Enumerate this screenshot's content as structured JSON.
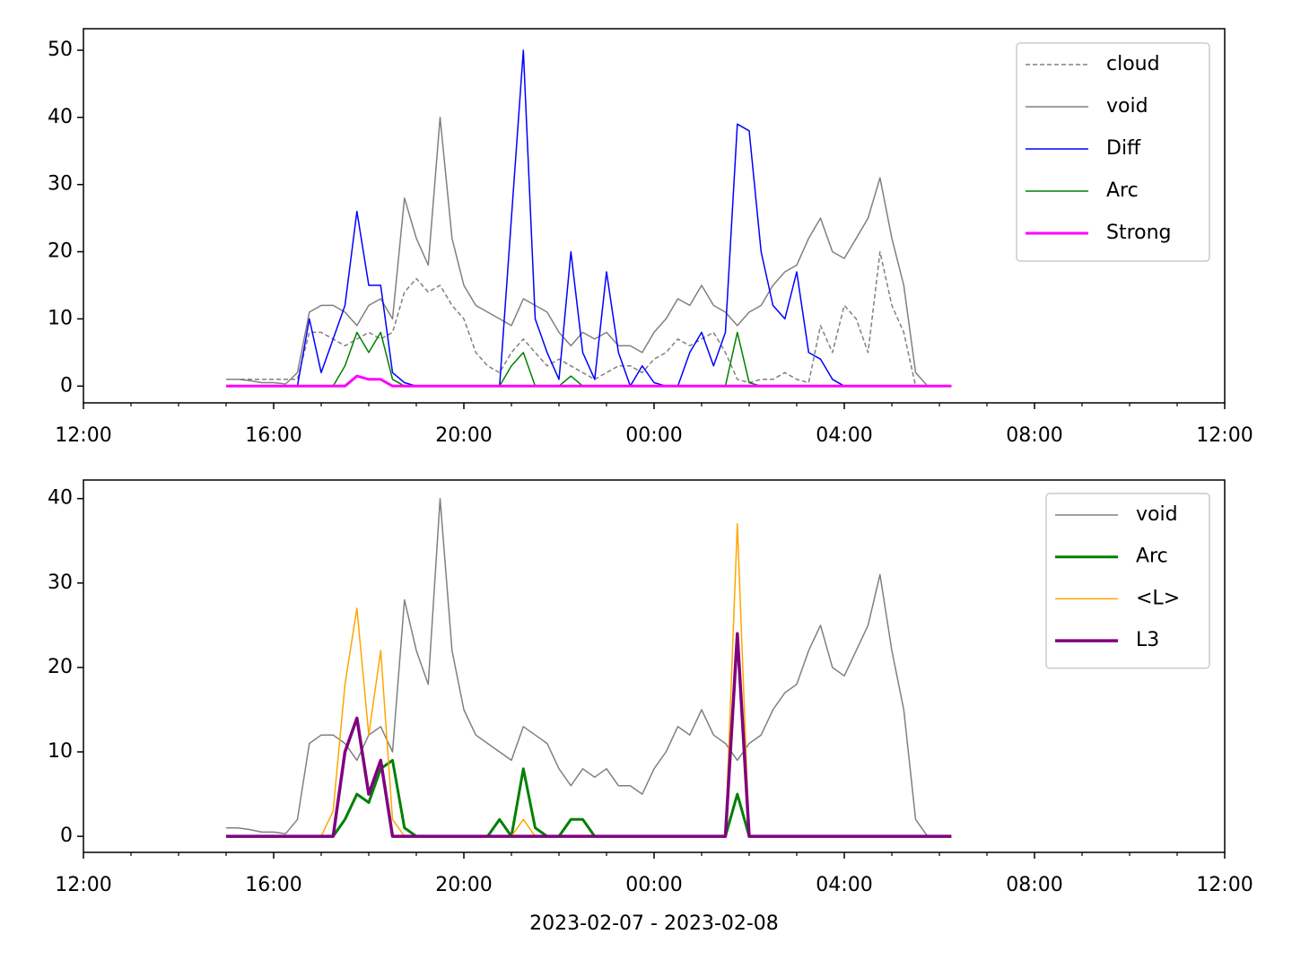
{
  "chart_data": [
    {
      "type": "line",
      "legend": "upper right",
      "x": [
        3,
        3.25,
        3.5,
        3.75,
        4,
        4.25,
        4.5,
        4.75,
        5,
        5.25,
        5.5,
        5.75,
        6,
        6.25,
        6.5,
        6.75,
        7,
        7.25,
        7.5,
        7.75,
        8,
        8.25,
        8.5,
        8.75,
        9,
        9.25,
        9.5,
        9.75,
        10,
        10.25,
        10.5,
        10.75,
        11,
        11.25,
        11.5,
        11.75,
        12,
        12.25,
        12.5,
        12.75,
        13,
        13.25,
        13.5,
        13.75,
        14,
        14.25,
        14.5,
        14.75,
        15,
        15.25,
        15.5,
        15.75,
        16,
        16.25,
        16.5,
        16.75,
        17,
        17.25,
        17.5,
        17.75,
        18,
        18.25
      ],
      "xlim": [
        0,
        24
      ],
      "xticks": [
        {
          "value": 0,
          "label": "12:00"
        },
        {
          "value": 4,
          "label": "16:00"
        },
        {
          "value": 8,
          "label": "20:00"
        },
        {
          "value": 12,
          "label": "00:00"
        },
        {
          "value": 16,
          "label": "04:00"
        },
        {
          "value": 20,
          "label": "08:00"
        },
        {
          "value": 24,
          "label": "12:00"
        }
      ],
      "ylim": [
        -2.5,
        53.2
      ],
      "yticks": [
        0,
        10,
        20,
        30,
        40,
        50
      ],
      "series": [
        {
          "name": "cloud",
          "color": "#808080",
          "linewidth": 1.5,
          "dash": true,
          "values": [
            1,
            1,
            1,
            1,
            1,
            1,
            1,
            8,
            8,
            7,
            6,
            7,
            8,
            7,
            8,
            14,
            16,
            14,
            15,
            12,
            10,
            5,
            3,
            2,
            5,
            7,
            5,
            3,
            4,
            3,
            2,
            1,
            2,
            3,
            3,
            2,
            4,
            5,
            7,
            6,
            7,
            8,
            5,
            1,
            0.5,
            1,
            1,
            2,
            1,
            0.5,
            9,
            5,
            12,
            10,
            5,
            20,
            12,
            8,
            0,
            0,
            0,
            0
          ]
        },
        {
          "name": "void",
          "color": "#808080",
          "linewidth": 1.5,
          "dash": false,
          "values": [
            1,
            1,
            0.8,
            0.5,
            0.5,
            0.3,
            2,
            11,
            12,
            12,
            11,
            9,
            12,
            13,
            10,
            28,
            22,
            18,
            40,
            22,
            15,
            12,
            11,
            10,
            9,
            13,
            12,
            11,
            8,
            6,
            8,
            7,
            8,
            6,
            6,
            5,
            8,
            10,
            13,
            12,
            15,
            12,
            11,
            9,
            11,
            12,
            15,
            17,
            18,
            22,
            25,
            20,
            19,
            22,
            25,
            31,
            22,
            15,
            2,
            0,
            0,
            0
          ]
        },
        {
          "name": "Diff",
          "color": "#0000ff",
          "linewidth": 1.5,
          "dash": false,
          "values": [
            0,
            0,
            0,
            0,
            0,
            0,
            0,
            10,
            2,
            7,
            12,
            26,
            15,
            15,
            2,
            0.5,
            0,
            0,
            0,
            0,
            0,
            0,
            0,
            0,
            25,
            50,
            10,
            5,
            1,
            20,
            5,
            1,
            17,
            5,
            0,
            3,
            0.5,
            0,
            0,
            5,
            8,
            3,
            8,
            39,
            38,
            20,
            12,
            10,
            17,
            5,
            4,
            1,
            0,
            0,
            0,
            0,
            0,
            0,
            0,
            0,
            0,
            0
          ]
        },
        {
          "name": "Arc",
          "color": "#008000",
          "linewidth": 1.5,
          "dash": false,
          "values": [
            0,
            0,
            0,
            0,
            0,
            0,
            0,
            0,
            0,
            0,
            3,
            8,
            5,
            8,
            1,
            0,
            0,
            0,
            0,
            0,
            0,
            0,
            0,
            0,
            3,
            5,
            0,
            0,
            0,
            1.5,
            0,
            0,
            0,
            0,
            0,
            0,
            0,
            0,
            0,
            0,
            0,
            0,
            0,
            8,
            0.5,
            0,
            0,
            0,
            0,
            0,
            0,
            0,
            0,
            0,
            0,
            0,
            0,
            0,
            0,
            0,
            0,
            0
          ]
        },
        {
          "name": "Strong",
          "color": "#ff00ff",
          "linewidth": 3,
          "dash": false,
          "values": [
            0,
            0,
            0,
            0,
            0,
            0,
            0,
            0,
            0,
            0,
            0,
            1.5,
            1,
            1,
            0,
            0,
            0,
            0,
            0,
            0,
            0,
            0,
            0,
            0,
            0,
            0,
            0,
            0,
            0,
            0,
            0,
            0,
            0,
            0,
            0,
            0,
            0,
            0,
            0,
            0,
            0,
            0,
            0,
            0,
            0,
            0,
            0,
            0,
            0,
            0,
            0,
            0,
            0,
            0,
            0,
            0,
            0,
            0,
            0,
            0,
            0,
            0
          ]
        }
      ]
    },
    {
      "type": "line",
      "legend": "upper right",
      "xlabel": "2023-02-07 - 2023-02-08",
      "x": [
        3,
        3.25,
        3.5,
        3.75,
        4,
        4.25,
        4.5,
        4.75,
        5,
        5.25,
        5.5,
        5.75,
        6,
        6.25,
        6.5,
        6.75,
        7,
        7.25,
        7.5,
        7.75,
        8,
        8.25,
        8.5,
        8.75,
        9,
        9.25,
        9.5,
        9.75,
        10,
        10.25,
        10.5,
        10.75,
        11,
        11.25,
        11.5,
        11.75,
        12,
        12.25,
        12.5,
        12.75,
        13,
        13.25,
        13.5,
        13.75,
        14,
        14.25,
        14.5,
        14.75,
        15,
        15.25,
        15.5,
        15.75,
        16,
        16.25,
        16.5,
        16.75,
        17,
        17.25,
        17.5,
        17.75,
        18,
        18.25
      ],
      "xlim": [
        0,
        24
      ],
      "xticks": [
        {
          "value": 0,
          "label": "12:00"
        },
        {
          "value": 4,
          "label": "16:00"
        },
        {
          "value": 8,
          "label": "20:00"
        },
        {
          "value": 12,
          "label": "00:00"
        },
        {
          "value": 16,
          "label": "04:00"
        },
        {
          "value": 20,
          "label": "08:00"
        },
        {
          "value": 24,
          "label": "12:00"
        }
      ],
      "ylim": [
        -1.9,
        42.2
      ],
      "yticks": [
        0,
        10,
        20,
        30,
        40
      ],
      "series": [
        {
          "name": "void",
          "color": "#808080",
          "linewidth": 1.5,
          "dash": false,
          "values": [
            1,
            1,
            0.8,
            0.5,
            0.5,
            0.3,
            2,
            11,
            12,
            12,
            11,
            9,
            12,
            13,
            10,
            28,
            22,
            18,
            40,
            22,
            15,
            12,
            11,
            10,
            9,
            13,
            12,
            11,
            8,
            6,
            8,
            7,
            8,
            6,
            6,
            5,
            8,
            10,
            13,
            12,
            15,
            12,
            11,
            9,
            11,
            12,
            15,
            17,
            18,
            22,
            25,
            20,
            19,
            22,
            25,
            31,
            22,
            15,
            2,
            0,
            0,
            0
          ]
        },
        {
          "name": "Arc",
          "color": "#008000",
          "linewidth": 3,
          "dash": false,
          "values": [
            0,
            0,
            0,
            0,
            0,
            0,
            0,
            0,
            0,
            0,
            2,
            5,
            4,
            8,
            9,
            1,
            0,
            0,
            0,
            0,
            0,
            0,
            0,
            2,
            0,
            8,
            1,
            0,
            0,
            2,
            2,
            0,
            0,
            0,
            0,
            0,
            0,
            0,
            0,
            0,
            0,
            0,
            0,
            5,
            0,
            0,
            0,
            0,
            0,
            0,
            0,
            0,
            0,
            0,
            0,
            0,
            0,
            0,
            0,
            0,
            0,
            0
          ]
        },
        {
          "name": "<L>",
          "color": "#ffa500",
          "linewidth": 1.5,
          "dash": false,
          "values": [
            0,
            0,
            0,
            0,
            0,
            0,
            0,
            0,
            0,
            3,
            18,
            27,
            12,
            22,
            2,
            0,
            0,
            0,
            0,
            0,
            0,
            0,
            0,
            0,
            0,
            2,
            0,
            0,
            0,
            0,
            0,
            0,
            0,
            0,
            0,
            0,
            0,
            0,
            0,
            0,
            0,
            0,
            0,
            37,
            0,
            0,
            0,
            0,
            0,
            0,
            0,
            0,
            0,
            0,
            0,
            0,
            0,
            0,
            0,
            0,
            0,
            0
          ]
        },
        {
          "name": "L3",
          "color": "#800080",
          "linewidth": 3.5,
          "dash": false,
          "values": [
            0,
            0,
            0,
            0,
            0,
            0,
            0,
            0,
            0,
            0,
            10,
            14,
            5,
            9,
            0,
            0,
            0,
            0,
            0,
            0,
            0,
            0,
            0,
            0,
            0,
            0,
            0,
            0,
            0,
            0,
            0,
            0,
            0,
            0,
            0,
            0,
            0,
            0,
            0,
            0,
            0,
            0,
            0,
            24,
            0,
            0,
            0,
            0,
            0,
            0,
            0,
            0,
            0,
            0,
            0,
            0,
            0,
            0,
            0,
            0,
            0,
            0
          ]
        }
      ]
    }
  ]
}
